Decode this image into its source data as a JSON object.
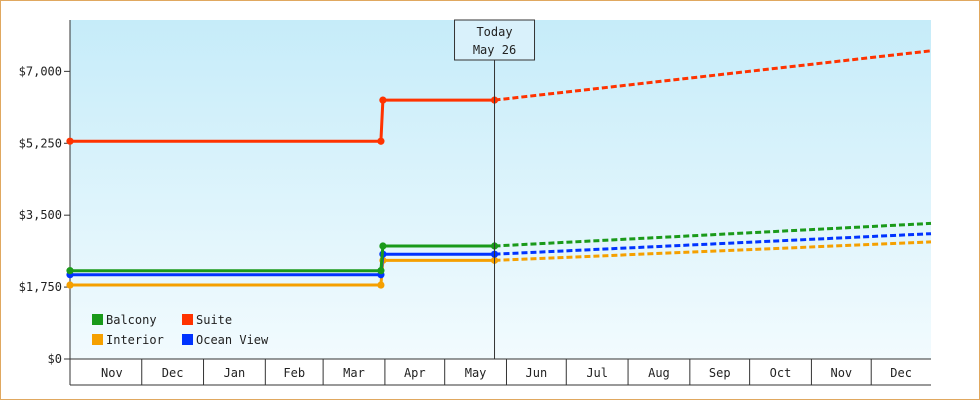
{
  "chart_data": {
    "type": "line",
    "title": "",
    "xlabel": "",
    "ylabel": "",
    "ylim": [
      0,
      8250
    ],
    "x_domain": [
      "2023-10-26",
      "2024-12-31"
    ],
    "y_ticks": [
      {
        "value": 0,
        "label": "$0"
      },
      {
        "value": 1750,
        "label": "$1,750"
      },
      {
        "value": 3500,
        "label": "$3,500"
      },
      {
        "value": 5250,
        "label": "$5,250"
      },
      {
        "value": 7000,
        "label": "$7,000"
      }
    ],
    "months": [
      {
        "label": "Nov",
        "start": "2023-11-01",
        "end": "2023-12-01"
      },
      {
        "label": "Dec",
        "start": "2023-12-01",
        "end": "2024-01-01"
      },
      {
        "label": "Jan",
        "start": "2024-01-01",
        "end": "2024-02-01"
      },
      {
        "label": "Feb",
        "start": "2024-02-01",
        "end": "2024-03-01"
      },
      {
        "label": "Mar",
        "start": "2024-03-01",
        "end": "2024-04-01"
      },
      {
        "label": "Apr",
        "start": "2024-04-01",
        "end": "2024-05-01"
      },
      {
        "label": "May",
        "start": "2024-05-01",
        "end": "2024-06-01"
      },
      {
        "label": "Jun",
        "start": "2024-06-01",
        "end": "2024-07-01"
      },
      {
        "label": "Jul",
        "start": "2024-07-01",
        "end": "2024-08-01"
      },
      {
        "label": "Aug",
        "start": "2024-08-01",
        "end": "2024-09-01"
      },
      {
        "label": "Sep",
        "start": "2024-09-01",
        "end": "2024-10-01"
      },
      {
        "label": "Oct",
        "start": "2024-10-01",
        "end": "2024-11-01"
      },
      {
        "label": "Nov",
        "start": "2024-11-01",
        "end": "2024-12-01"
      },
      {
        "label": "Dec",
        "start": "2024-12-01",
        "end": "2024-12-31"
      }
    ],
    "today": {
      "date": "2024-05-26",
      "label_line1": "Today",
      "label_line2": "May 26"
    },
    "grid": false,
    "legend": {
      "position": "bottom-left",
      "columns": 2
    },
    "series": [
      {
        "name": "Balcony",
        "color": "#1a9a1a",
        "history": [
          [
            "2023-10-26",
            2150
          ],
          [
            "2024-03-30",
            2150
          ],
          [
            "2024-03-31",
            2750
          ],
          [
            "2024-05-26",
            2750
          ]
        ],
        "forecast": [
          [
            "2024-05-26",
            2750
          ],
          [
            "2024-12-31",
            3300
          ]
        ]
      },
      {
        "name": "Suite",
        "color": "#ff3300",
        "history": [
          [
            "2023-10-26",
            5300
          ],
          [
            "2024-03-30",
            5300
          ],
          [
            "2024-03-31",
            6300
          ],
          [
            "2024-05-26",
            6300
          ]
        ],
        "forecast": [
          [
            "2024-05-26",
            6300
          ],
          [
            "2024-12-31",
            7500
          ]
        ]
      },
      {
        "name": "Interior",
        "color": "#f5a000",
        "history": [
          [
            "2023-10-26",
            1800
          ],
          [
            "2024-03-30",
            1800
          ],
          [
            "2024-03-31",
            2400
          ],
          [
            "2024-05-26",
            2400
          ]
        ],
        "forecast": [
          [
            "2024-05-26",
            2400
          ],
          [
            "2024-12-31",
            2850
          ]
        ]
      },
      {
        "name": "Ocean View",
        "color": "#0033ff",
        "history": [
          [
            "2023-10-26",
            2050
          ],
          [
            "2024-03-30",
            2050
          ],
          [
            "2024-03-31",
            2550
          ],
          [
            "2024-05-26",
            2550
          ]
        ],
        "forecast": [
          [
            "2024-05-26",
            2550
          ],
          [
            "2024-12-31",
            3050
          ]
        ]
      }
    ]
  }
}
